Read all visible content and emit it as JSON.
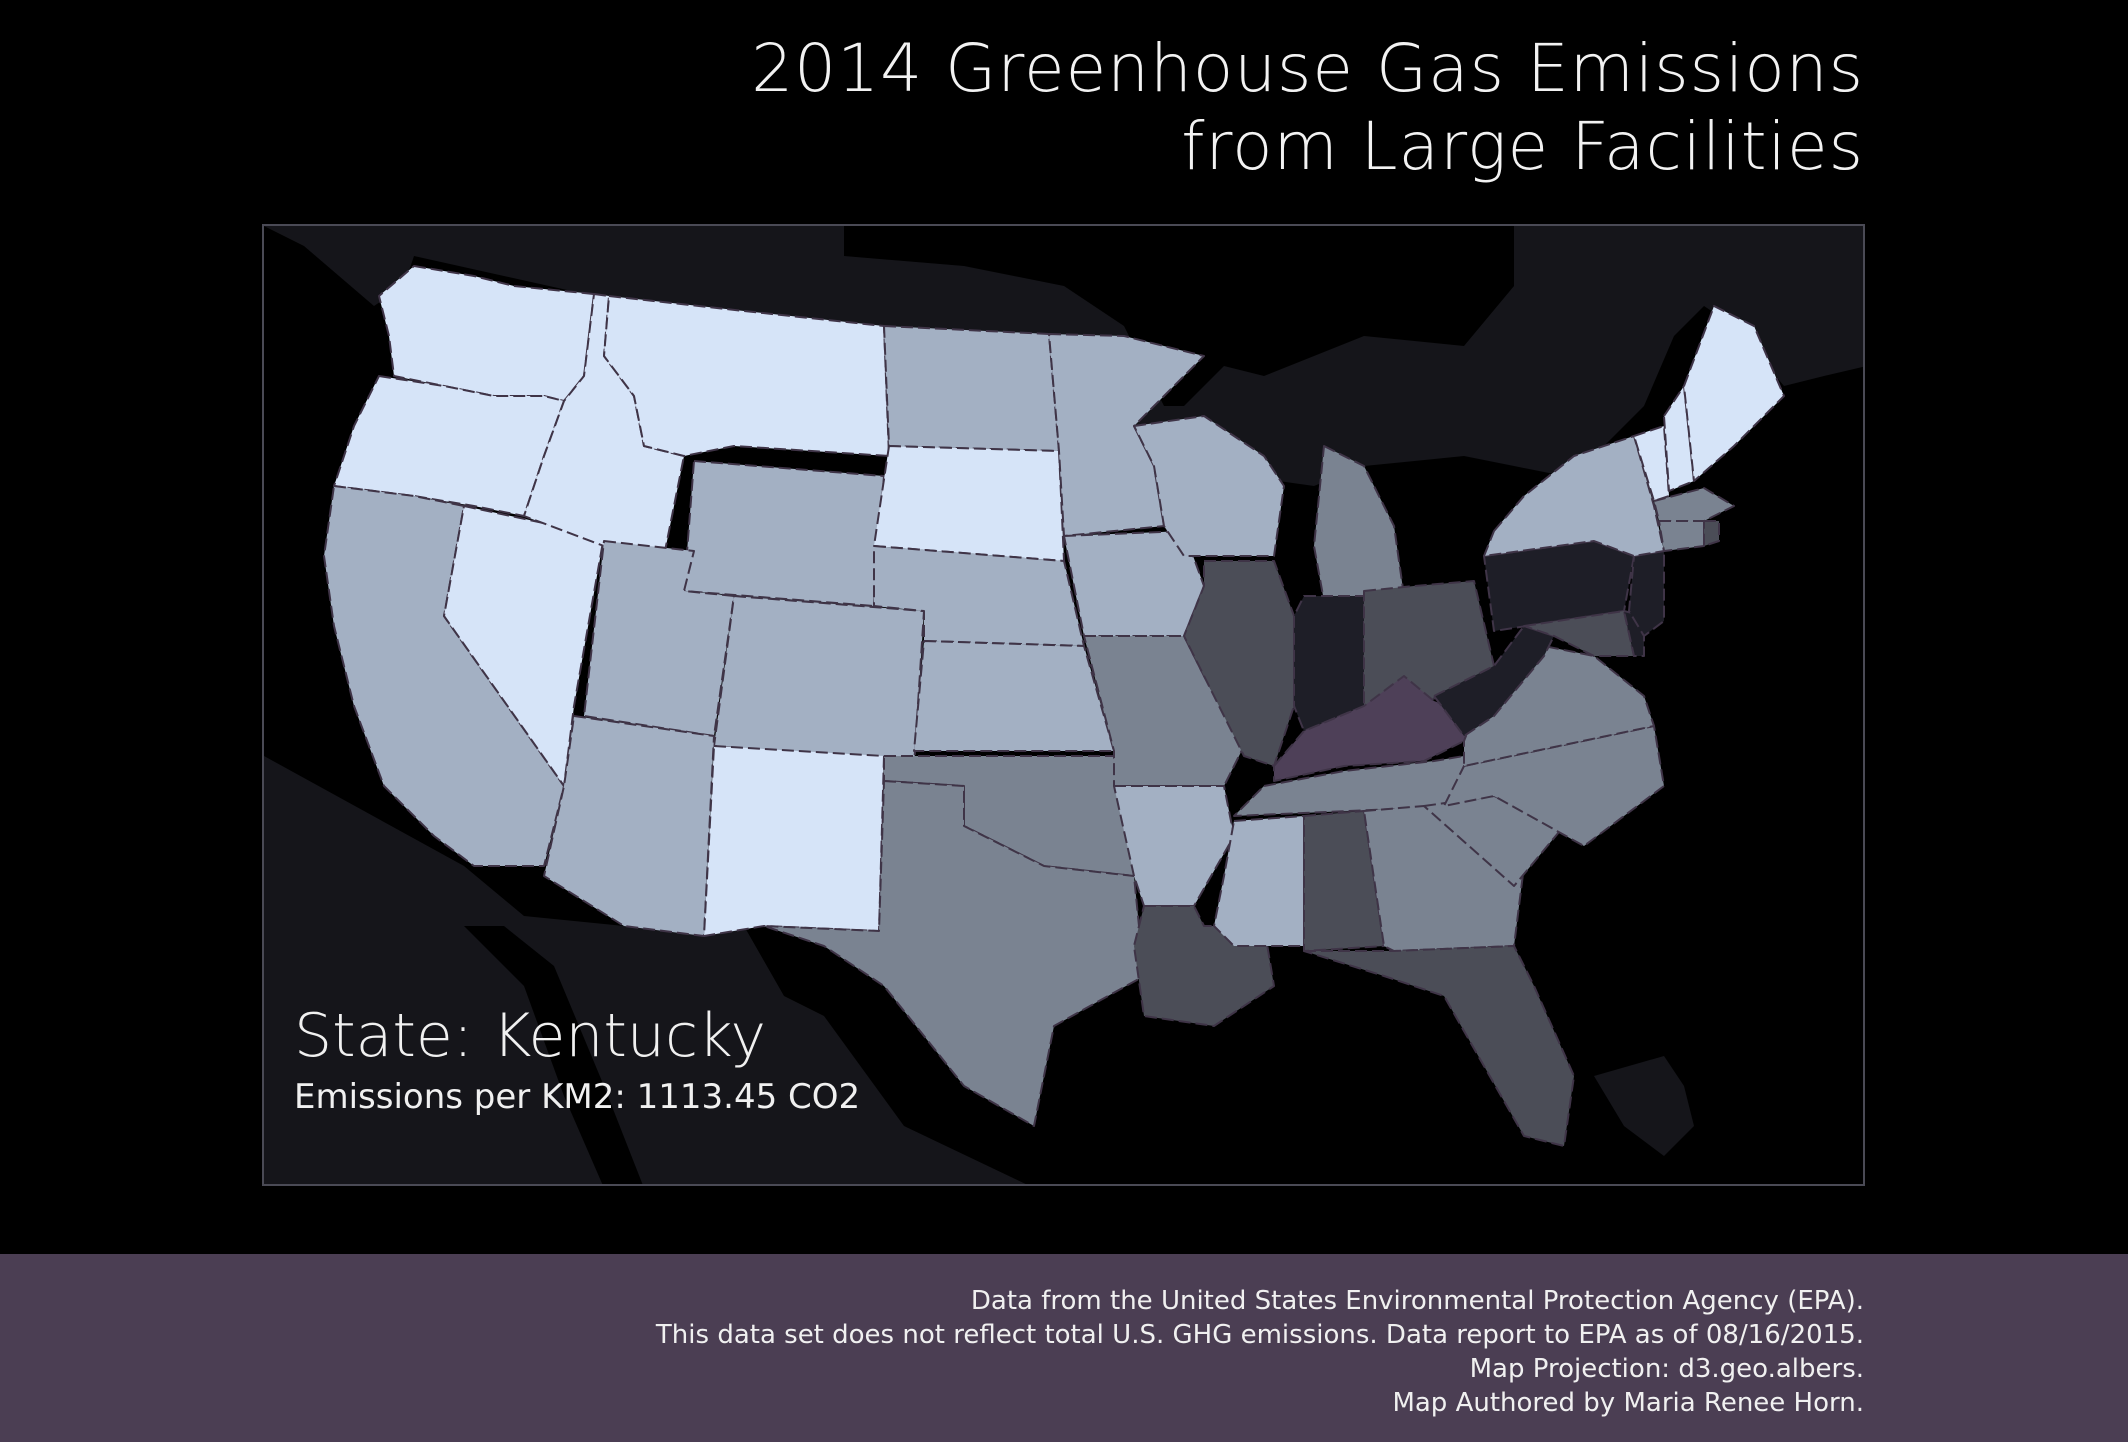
{
  "title": {
    "line1": "2014 Greenhouse Gas Emissions",
    "line2": "from Large Facilities"
  },
  "info": {
    "state": "State: Kentucky",
    "emissions": "Emissions per KM2: 1113.45 CO2"
  },
  "footer": {
    "line1": "Data from the United States Environmental Protection Agency (EPA).",
    "line2": "This data set does not reflect total U.S. GHG emissions. Data report to EPA as of 08/16/2015.",
    "line3": "Map Projection: d3.geo.albers.",
    "line4": "Map Authored by Maria Renee Horn."
  },
  "colors": {
    "background": "#000000",
    "footer_bg": "#4b3e53",
    "land_outside": "#15151a",
    "level_1": "#d6e4f8",
    "level_2": "#a3b0c3",
    "level_3": "#7a8391",
    "level_4": "#4b4d57",
    "level_5": "#1e1e27",
    "highlight": "#4e4058",
    "border": "#3f3447"
  },
  "map": {
    "projection": "albers",
    "selected_state": "Kentucky",
    "states": [
      {
        "name": "Washington",
        "level": 1
      },
      {
        "name": "Oregon",
        "level": 1
      },
      {
        "name": "Idaho",
        "level": 1
      },
      {
        "name": "Montana",
        "level": 1
      },
      {
        "name": "Nevada",
        "level": 1
      },
      {
        "name": "South Dakota",
        "level": 1
      },
      {
        "name": "New Mexico",
        "level": 1
      },
      {
        "name": "Maine",
        "level": 1
      },
      {
        "name": "Vermont",
        "level": 1
      },
      {
        "name": "New Hampshire",
        "level": 1
      },
      {
        "name": "California",
        "level": 2
      },
      {
        "name": "Utah",
        "level": 2
      },
      {
        "name": "Arizona",
        "level": 2
      },
      {
        "name": "Wyoming",
        "level": 2
      },
      {
        "name": "Colorado",
        "level": 2
      },
      {
        "name": "North Dakota",
        "level": 2
      },
      {
        "name": "Nebraska",
        "level": 2
      },
      {
        "name": "Kansas",
        "level": 2
      },
      {
        "name": "Minnesota",
        "level": 2
      },
      {
        "name": "Iowa",
        "level": 2
      },
      {
        "name": "Wisconsin",
        "level": 2
      },
      {
        "name": "Arkansas",
        "level": 2
      },
      {
        "name": "Mississippi",
        "level": 2
      },
      {
        "name": "New York",
        "level": 2
      },
      {
        "name": "Texas",
        "level": 3
      },
      {
        "name": "Oklahoma",
        "level": 3
      },
      {
        "name": "Missouri",
        "level": 3
      },
      {
        "name": "Michigan",
        "level": 3
      },
      {
        "name": "Tennessee",
        "level": 3
      },
      {
        "name": "Georgia",
        "level": 3
      },
      {
        "name": "South Carolina",
        "level": 3
      },
      {
        "name": "North Carolina",
        "level": 3
      },
      {
        "name": "Virginia",
        "level": 3
      },
      {
        "name": "Connecticut",
        "level": 3
      },
      {
        "name": "Massachusetts",
        "level": 3
      },
      {
        "name": "Illinois",
        "level": 4
      },
      {
        "name": "Ohio",
        "level": 4
      },
      {
        "name": "Louisiana",
        "level": 4
      },
      {
        "name": "Alabama",
        "level": 4
      },
      {
        "name": "Florida",
        "level": 4
      },
      {
        "name": "Maryland",
        "level": 4
      },
      {
        "name": "Indiana",
        "level": 5
      },
      {
        "name": "Pennsylvania",
        "level": 5
      },
      {
        "name": "West Virginia",
        "level": 5
      },
      {
        "name": "New Jersey",
        "level": 5
      },
      {
        "name": "Delaware",
        "level": 5
      },
      {
        "name": "Rhode Island",
        "level": 4
      },
      {
        "name": "Kentucky",
        "level": "highlight"
      }
    ]
  }
}
